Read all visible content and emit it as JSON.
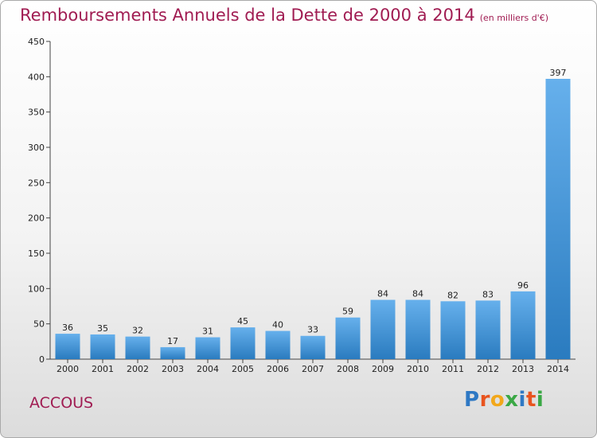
{
  "header": {
    "title": "Remboursements Annuels de la Dette de 2000 à 2014",
    "unit": "(en milliers d'€)"
  },
  "footer": {
    "commune": "ACCOUS",
    "logo_letters": [
      "P",
      "r",
      "o",
      "x",
      "i",
      "t",
      "i"
    ],
    "logo_colors": [
      "#2e78c4",
      "#e8541f",
      "#f2a81b",
      "#3aa845",
      "#2e78c4",
      "#e8541f",
      "#3aa845"
    ]
  },
  "colors": {
    "bar_light": "#66b0ec",
    "bar_dark": "#2a7bbf",
    "title": "#a01c52"
  },
  "chart_data": {
    "type": "bar",
    "categories": [
      "2000",
      "2001",
      "2002",
      "2003",
      "2004",
      "2005",
      "2006",
      "2007",
      "2008",
      "2009",
      "2010",
      "2011",
      "2012",
      "2013",
      "2014"
    ],
    "values": [
      36,
      35,
      32,
      17,
      31,
      45,
      40,
      33,
      59,
      84,
      84,
      82,
      83,
      96,
      397
    ],
    "yticks": [
      0,
      50,
      100,
      150,
      200,
      250,
      300,
      350,
      400,
      450
    ],
    "ylim": [
      0,
      450
    ],
    "grid": false,
    "legend": "none"
  }
}
